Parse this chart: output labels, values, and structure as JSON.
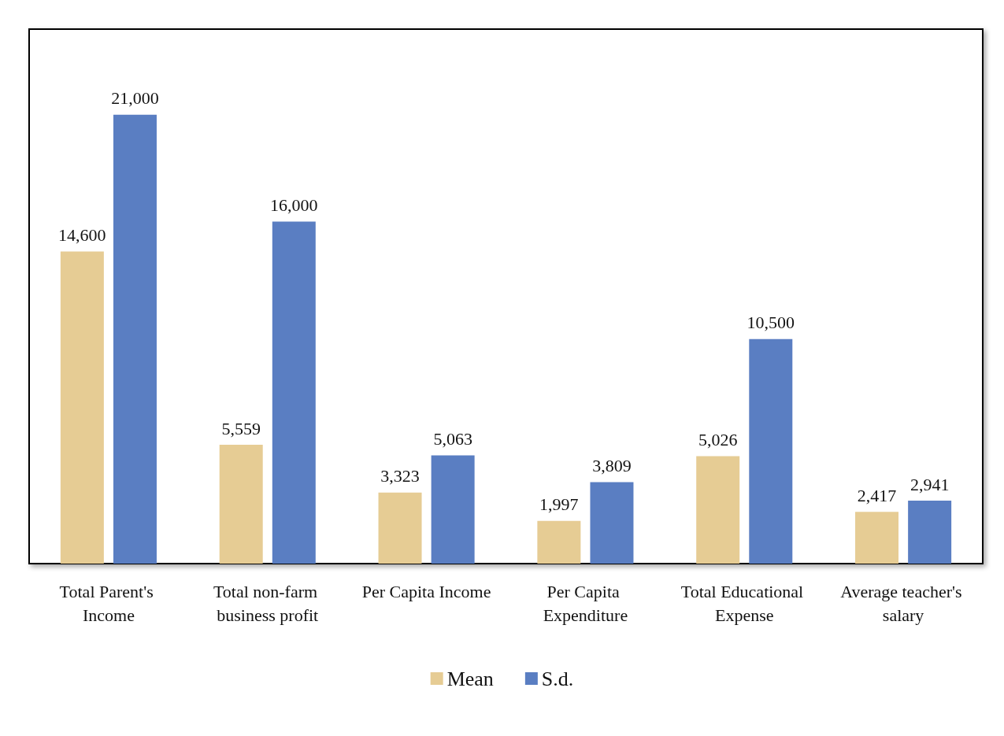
{
  "chart_data": {
    "type": "bar",
    "categories": [
      "Total Parent's Income",
      "Total non-farm business profit",
      "Per Capita Income",
      "Per Capita Expenditure",
      "Total Educational Expense",
      "Average teacher's salary"
    ],
    "series": [
      {
        "name": "Mean",
        "color": "#e6cc94",
        "values": [
          14600,
          5559,
          3323,
          1997,
          5026,
          2417
        ],
        "value_labels": [
          "14,600",
          "5,559",
          "3,323",
          "1,997",
          "5,026",
          "2,417"
        ]
      },
      {
        "name": "S.d.",
        "color": "#5a7ec2",
        "values": [
          21000,
          16000,
          5063,
          3809,
          10500,
          2941
        ],
        "value_labels": [
          "21,000",
          "16,000",
          "5,063",
          "3,809",
          "10,500",
          "2,941"
        ]
      }
    ],
    "legend": "bottom"
  }
}
